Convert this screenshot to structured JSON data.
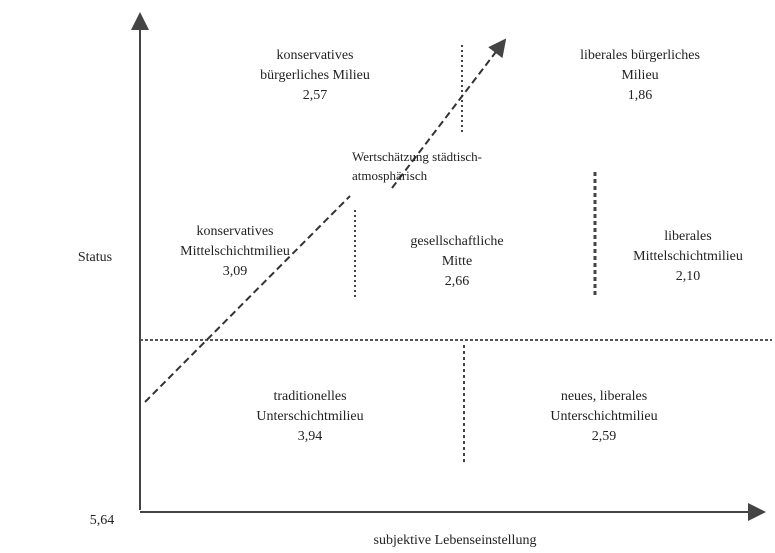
{
  "axes": {
    "y_label": "Status",
    "x_label": "subjektive Lebenseinstellung",
    "origin_value": "5,64"
  },
  "annotation": [
    "Wertschätzung städtisch-",
    "atmosphärisch"
  ],
  "milieus": [
    {
      "lines": [
        "konservatives",
        "bürgerliches Milieu"
      ],
      "value": "2,57"
    },
    {
      "lines": [
        "liberales bürgerliches",
        "Milieu"
      ],
      "value": "1,86"
    },
    {
      "lines": [
        "konservatives",
        "Mittelschichtmilieu"
      ],
      "value": "3,09"
    },
    {
      "lines": [
        "gesellschaftliche",
        "Mitte"
      ],
      "value": "2,66"
    },
    {
      "lines": [
        "liberales",
        "Mittelschichtmilieu"
      ],
      "value": "2,10"
    },
    {
      "lines": [
        "traditionelles",
        "Unterschichtmilieu"
      ],
      "value": "3,94"
    },
    {
      "lines": [
        "neues, liberales",
        "Unterschichtmilieu"
      ],
      "value": "2,59"
    }
  ]
}
